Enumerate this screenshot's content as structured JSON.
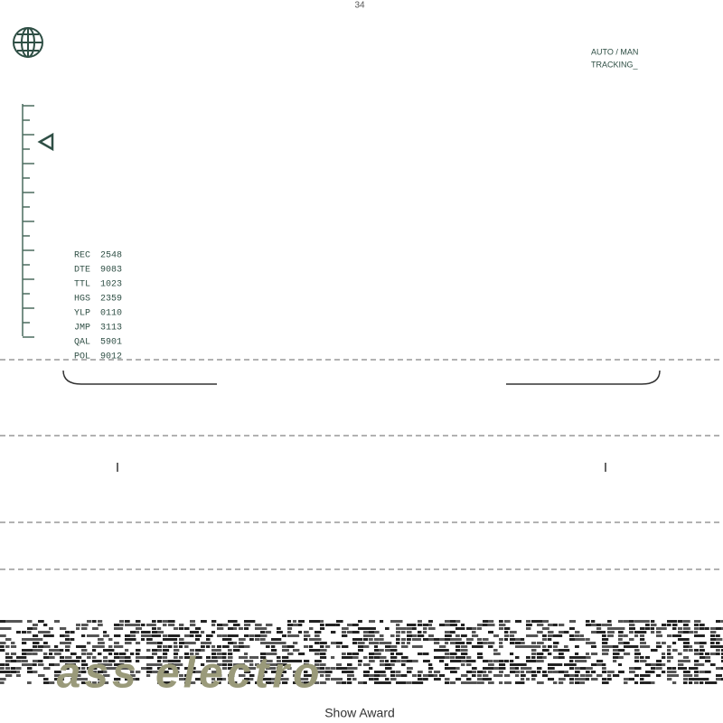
{
  "header": {
    "counter": "34",
    "mode": "AUTO / MAN",
    "status": "TRACKING_"
  },
  "readouts": [
    {
      "label": "REC",
      "value": "2548"
    },
    {
      "label": "DTE",
      "value": "9083"
    },
    {
      "label": "TTL",
      "value": "1023"
    },
    {
      "label": "HGS",
      "value": "2359"
    },
    {
      "label": "YLP",
      "value": "0110"
    },
    {
      "label": "JMP",
      "value": "3113"
    },
    {
      "label": "QAL",
      "value": "5901"
    },
    {
      "label": "POL",
      "value": "9012"
    }
  ],
  "footer": {
    "logo": "ass electro",
    "caption": "Show Award"
  }
}
